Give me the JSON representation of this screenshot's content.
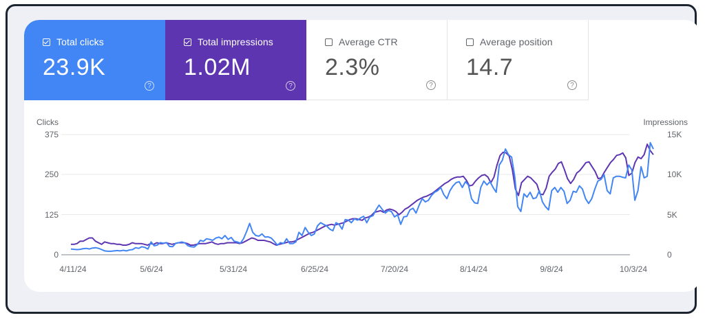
{
  "tiles": [
    {
      "label": "Total clicks",
      "value": "23.9K",
      "checked": true,
      "color": "#4285f4"
    },
    {
      "label": "Total impressions",
      "value": "1.02M",
      "checked": true,
      "color": "#5e35b1"
    },
    {
      "label": "Average CTR",
      "value": "2.3%",
      "checked": false
    },
    {
      "label": "Average position",
      "value": "14.7",
      "checked": false
    }
  ],
  "help_icon": "?",
  "chart_data": {
    "type": "line",
    "title": "",
    "left_axis": {
      "label": "Clicks",
      "ticks": [
        "0",
        "125",
        "250",
        "375"
      ],
      "range": [
        0,
        375
      ]
    },
    "right_axis": {
      "label": "Impressions",
      "ticks": [
        "0",
        "5K",
        "10K",
        "15K"
      ],
      "range": [
        0,
        15000
      ]
    },
    "x_ticks": [
      "4/11/24",
      "5/6/24",
      "5/31/24",
      "6/25/24",
      "7/20/24",
      "8/14/24",
      "9/8/24",
      "10/3/24"
    ],
    "grid": true,
    "legend": "tiles",
    "series": [
      {
        "name": "Clicks",
        "axis": "left",
        "color": "#4285f4",
        "values": [
          18,
          17,
          16,
          17,
          19,
          20,
          18,
          21,
          22,
          20,
          16,
          12,
          11,
          11,
          12,
          13,
          12,
          14,
          12,
          15,
          16,
          22,
          20,
          25,
          23,
          18,
          40,
          28,
          30,
          38,
          36,
          38,
          26,
          25,
          36,
          38,
          40,
          37,
          28,
          25,
          24,
          32,
          45,
          42,
          50,
          48,
          45,
          52,
          55,
          50,
          60,
          48,
          54,
          42,
          40,
          36,
          50,
          72,
          98,
          70,
          60,
          58,
          65,
          55,
          56,
          52,
          42,
          30,
          38,
          35,
          50,
          35,
          35,
          40,
          70,
          60,
          85,
          70,
          60,
          65,
          90,
          100,
          95,
          90,
          80,
          75,
          100,
          95,
          80,
          110,
          108,
          100,
          112,
          108,
          115,
          120,
          100,
          118,
          122,
          140,
          155,
          142,
          130,
          138,
          135,
          118,
          125,
          95,
          118,
          120,
          140,
          145,
          130,
          155,
          175,
          165,
          170,
          185,
          195,
          200,
          210,
          188,
          175,
          200,
          215,
          225,
          228,
          210,
          228,
          218,
          175,
          162,
          160,
          210,
          230,
          218,
          228,
          210,
          195,
          280,
          295,
          330,
          312,
          305,
          245,
          150,
          135,
          190,
          180,
          195,
          175,
          178,
          200,
          165,
          150,
          140,
          200,
          210,
          195,
          210,
          198,
          160,
          170,
          198,
          195,
          215,
          205,
          175,
          160,
          175,
          205,
          230,
          235,
          250,
          200,
          190,
          240,
          245,
          245,
          242,
          240,
          280,
          265,
          170,
          200,
          275,
          240,
          245,
          350,
          330
        ]
      },
      {
        "name": "Impressions",
        "axis": "right",
        "color": "#5e35b1",
        "values": [
          1300,
          1300,
          1400,
          1700,
          1700,
          1900,
          2100,
          2100,
          1700,
          1500,
          1300,
          1600,
          1500,
          1400,
          1400,
          1300,
          1300,
          1200,
          1200,
          1300,
          1500,
          1400,
          1400,
          1400,
          1300,
          1200,
          1400,
          1300,
          1500,
          1400,
          1400,
          1500,
          1400,
          1300,
          1400,
          1500,
          1500,
          1500,
          1400,
          1200,
          1200,
          1300,
          1400,
          1400,
          1400,
          1500,
          1600,
          1400,
          1300,
          1400,
          1400,
          1500,
          1500,
          1500,
          1500,
          1400,
          1500,
          1700,
          1900,
          2100,
          2000,
          1800,
          1800,
          1800,
          1700,
          1600,
          1400,
          1200,
          1300,
          1400,
          1500,
          1600,
          1600,
          1700,
          1900,
          2100,
          2300,
          2500,
          2700,
          2800,
          3000,
          3200,
          3400,
          3600,
          3700,
          3800,
          3700,
          3800,
          3900,
          4000,
          4200,
          4400,
          4500,
          4500,
          4400,
          4300,
          4600,
          4700,
          4900,
          5300,
          5400,
          5500,
          5300,
          5600,
          5700,
          5600,
          5400,
          5000,
          5300,
          5700,
          5900,
          6200,
          6500,
          6800,
          7000,
          7200,
          7300,
          7500,
          7700,
          8000,
          8300,
          8600,
          8900,
          9100,
          9400,
          9600,
          9700,
          9700,
          9800,
          9300,
          8600,
          8700,
          9200,
          9600,
          9900,
          10000,
          9700,
          9000,
          9700,
          11200,
          12400,
          12800,
          12700,
          12300,
          10600,
          8200,
          7400,
          9000,
          9400,
          9800,
          9600,
          9200,
          8800,
          7600,
          7500,
          8300,
          9800,
          10300,
          10700,
          11400,
          11600,
          10600,
          9500,
          8900,
          9400,
          10200,
          10500,
          11000,
          11500,
          11600,
          11000,
          10400,
          9500,
          9600,
          10300,
          10900,
          11500,
          11900,
          12400,
          12500,
          12700,
          12100,
          9900,
          10200,
          11500,
          12200,
          12000,
          12500,
          13800,
          13000,
          12500
        ]
      }
    ]
  }
}
